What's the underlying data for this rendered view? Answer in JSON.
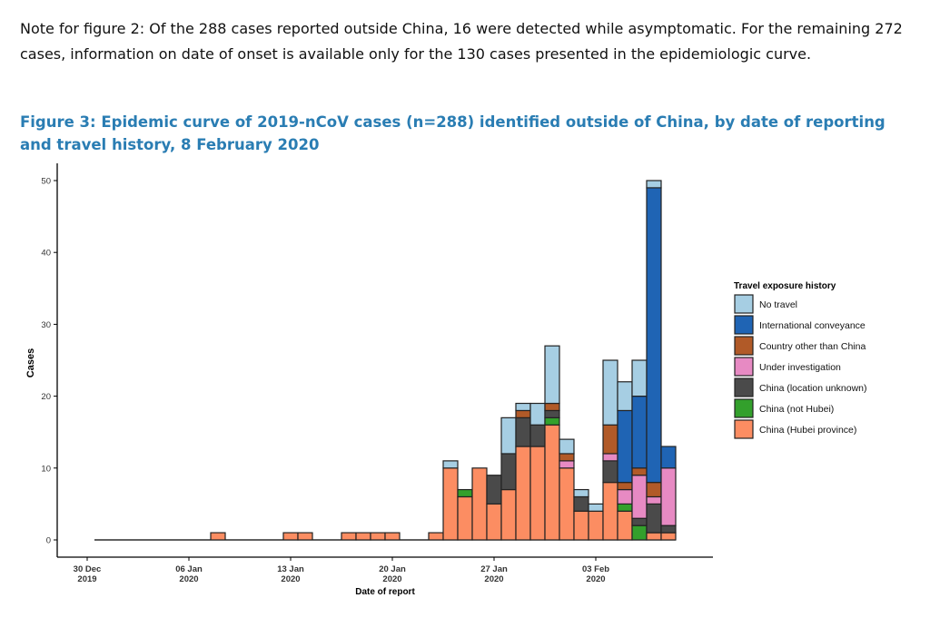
{
  "note": "Note for figure 2: Of the 288 cases reported outside China, 16 were detected while asymptomatic. For the remaining 272 cases, information on date of onset is available only for the 130 cases presented in the epidemiologic curve.",
  "figure_title": "Figure 3: Epidemic curve of 2019-nCoV cases (n=288) identified outside of China, by date of reporting and travel history, 8 February 2020",
  "chart_data": {
    "type": "bar",
    "stacked": true,
    "xlabel": "Date of report",
    "ylabel": "Cases",
    "ylim": [
      0,
      50
    ],
    "yticks": [
      "0",
      "10",
      "20",
      "30",
      "40",
      "50"
    ],
    "xticks": [
      {
        "day": 0,
        "line1": "30 Dec",
        "line2": "2019"
      },
      {
        "day": 7,
        "line1": "06 Jan",
        "line2": "2020"
      },
      {
        "day": 14,
        "line1": "13 Jan",
        "line2": "2020"
      },
      {
        "day": 21,
        "line1": "20 Jan",
        "line2": "2020"
      },
      {
        "day": 28,
        "line1": "27 Jan",
        "line2": "2020"
      },
      {
        "day": 35,
        "line1": "03 Feb",
        "line2": "2020"
      }
    ],
    "legend_title": "Travel exposure history",
    "legend_position": "right",
    "series": [
      {
        "name": "China (Hubei province)",
        "color": "#fc8d62"
      },
      {
        "name": "China (not Hubei)",
        "color": "#33a02c"
      },
      {
        "name": "China (location unknown)",
        "color": "#4a4a4a"
      },
      {
        "name": "Under investigation",
        "color": "#e78ac3"
      },
      {
        "name": "Country other than China",
        "color": "#b15a28"
      },
      {
        "name": "International conveyance",
        "color": "#1f64b4"
      },
      {
        "name": "No travel",
        "color": "#a6cee3"
      }
    ],
    "first_day": 1,
    "last_day": 40,
    "bars": [
      {
        "date": "08 Jan 2020",
        "day": 9,
        "values": [
          1,
          0,
          0,
          0,
          0,
          0,
          0
        ]
      },
      {
        "date": "13 Jan 2020",
        "day": 14,
        "values": [
          1,
          0,
          0,
          0,
          0,
          0,
          0
        ]
      },
      {
        "date": "14 Jan 2020",
        "day": 15,
        "values": [
          1,
          0,
          0,
          0,
          0,
          0,
          0
        ]
      },
      {
        "date": "17 Jan 2020",
        "day": 18,
        "values": [
          1,
          0,
          0,
          0,
          0,
          0,
          0
        ]
      },
      {
        "date": "18 Jan 2020",
        "day": 19,
        "values": [
          1,
          0,
          0,
          0,
          0,
          0,
          0
        ]
      },
      {
        "date": "19 Jan 2020",
        "day": 20,
        "values": [
          1,
          0,
          0,
          0,
          0,
          0,
          0
        ]
      },
      {
        "date": "20 Jan 2020",
        "day": 21,
        "values": [
          1,
          0,
          0,
          0,
          0,
          0,
          0
        ]
      },
      {
        "date": "23 Jan 2020",
        "day": 24,
        "values": [
          1,
          0,
          0,
          0,
          0,
          0,
          0
        ]
      },
      {
        "date": "24 Jan 2020",
        "day": 25,
        "values": [
          10,
          0,
          0,
          0,
          0,
          0,
          1
        ]
      },
      {
        "date": "25 Jan 2020",
        "day": 26,
        "values": [
          6,
          1,
          0,
          0,
          0,
          0,
          0
        ]
      },
      {
        "date": "26 Jan 2020",
        "day": 27,
        "values": [
          10,
          0,
          0,
          0,
          0,
          0,
          0
        ]
      },
      {
        "date": "27 Jan 2020",
        "day": 28,
        "values": [
          5,
          0,
          4,
          0,
          0,
          0,
          0
        ]
      },
      {
        "date": "28 Jan 2020",
        "day": 29,
        "values": [
          7,
          0,
          5,
          0,
          0,
          0,
          5
        ]
      },
      {
        "date": "29 Jan 2020",
        "day": 30,
        "values": [
          13,
          0,
          4,
          0,
          1,
          0,
          1
        ]
      },
      {
        "date": "30 Jan 2020",
        "day": 31,
        "values": [
          13,
          0,
          3,
          0,
          0,
          0,
          3
        ]
      },
      {
        "date": "31 Jan 2020",
        "day": 32,
        "values": [
          16,
          1,
          1,
          0,
          1,
          0,
          8
        ]
      },
      {
        "date": "01 Feb 2020",
        "day": 33,
        "values": [
          10,
          0,
          0,
          1,
          1,
          0,
          2
        ]
      },
      {
        "date": "02 Feb 2020",
        "day": 34,
        "values": [
          4,
          0,
          2,
          0,
          0,
          0,
          1
        ]
      },
      {
        "date": "03 Feb 2020",
        "day": 35,
        "values": [
          4,
          0,
          0,
          0,
          0,
          0,
          1
        ]
      },
      {
        "date": "04 Feb 2020",
        "day": 36,
        "values": [
          8,
          0,
          3,
          1,
          4,
          0,
          9
        ]
      },
      {
        "date": "05 Feb 2020",
        "day": 37,
        "values": [
          4,
          1,
          0,
          2,
          1,
          10,
          4
        ]
      },
      {
        "date": "06 Feb 2020",
        "day": 38,
        "values": [
          0,
          2,
          1,
          6,
          1,
          10,
          5
        ]
      },
      {
        "date": "07 Feb 2020",
        "day": 39,
        "values": [
          1,
          0,
          4,
          1,
          2,
          41,
          1
        ]
      },
      {
        "date": "08 Feb 2020",
        "day": 40,
        "values": [
          1,
          0,
          1,
          8,
          0,
          3,
          0
        ]
      }
    ]
  }
}
